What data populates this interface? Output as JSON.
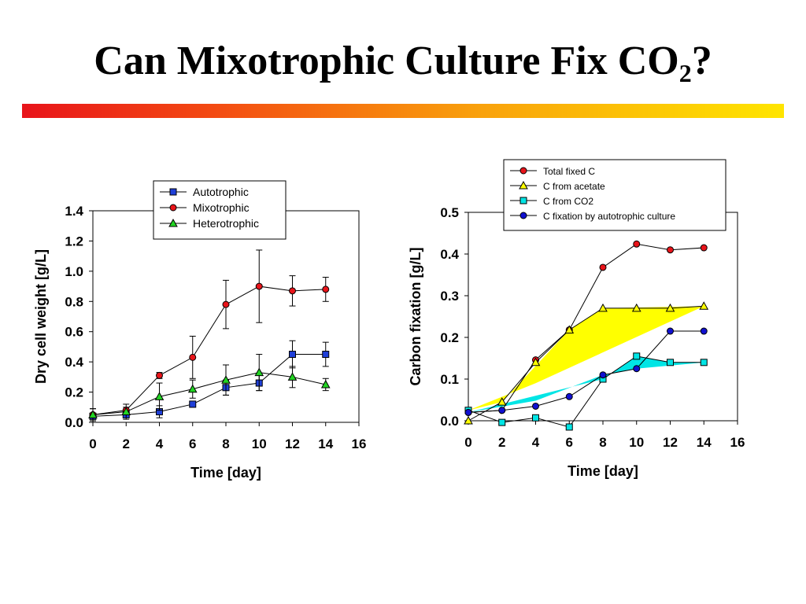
{
  "slide": {
    "title": "Can Mixotrophic Culture Fix CO",
    "title_subscript": "2",
    "title_suffix": "?"
  },
  "colors": {
    "title_bar_start": "#e8141a",
    "title_bar_end": "#ffe500",
    "autotrophic": "#1f3fd8",
    "mixotrophic": "#e8141a",
    "heterotrophic": "#22d422",
    "total_fixed": "#e8141a",
    "acetate": "#ffff00",
    "co2": "#00e5e5",
    "autotrophic_culture": "#1010d0"
  },
  "chart_data": [
    {
      "type": "line",
      "xlabel": "Time [day]",
      "ylabel": "Dry cell weight [g/L]",
      "xlim": [
        0,
        16
      ],
      "ylim": [
        0,
        1.4
      ],
      "xticks": [
        "0",
        "2",
        "4",
        "6",
        "8",
        "10",
        "12",
        "14",
        "16"
      ],
      "yticks": [
        "0.0",
        "0.2",
        "0.4",
        "0.6",
        "0.8",
        "1.0",
        "1.2",
        "1.4"
      ],
      "legend_position": "top-right",
      "grid": false,
      "series": [
        {
          "name": "Autotrophic",
          "marker": "square",
          "x": [
            0,
            2,
            4,
            6,
            8,
            10,
            12,
            14
          ],
          "y": [
            0.04,
            0.05,
            0.07,
            0.12,
            0.23,
            0.26,
            0.45,
            0.45
          ],
          "error": [
            0.02,
            0.02,
            0.04,
            0.02,
            0.05,
            0.05,
            0.09,
            0.08
          ]
        },
        {
          "name": "Mixotrophic",
          "marker": "circle",
          "x": [
            0,
            2,
            4,
            6,
            8,
            10,
            12,
            14
          ],
          "y": [
            0.05,
            0.08,
            0.31,
            0.43,
            0.78,
            0.9,
            0.87,
            0.88
          ],
          "error": [
            0.04,
            0.02,
            0.02,
            0.14,
            0.16,
            0.24,
            0.1,
            0.08
          ]
        },
        {
          "name": "Heterotrophic",
          "marker": "triangle",
          "x": [
            0,
            2,
            4,
            6,
            8,
            10,
            12,
            14
          ],
          "y": [
            0.05,
            0.07,
            0.17,
            0.22,
            0.28,
            0.33,
            0.3,
            0.25
          ],
          "error": [
            0.04,
            0.05,
            0.09,
            0.06,
            0.1,
            0.12,
            0.07,
            0.04
          ]
        }
      ]
    },
    {
      "type": "line",
      "xlabel": "Time [day]",
      "ylabel": "Carbon fixation [g/L]",
      "xlim": [
        0,
        16
      ],
      "ylim": [
        0,
        0.5
      ],
      "xticks": [
        "0",
        "2",
        "4",
        "6",
        "8",
        "10",
        "12",
        "14",
        "16"
      ],
      "yticks": [
        "0.0",
        "0.1",
        "0.2",
        "0.3",
        "0.4",
        "0.5"
      ],
      "legend_position": "top-right",
      "grid": false,
      "shaded_regions": [
        {
          "color": "yellow",
          "polygon_x": [
            0,
            2,
            6,
            8,
            14,
            4
          ],
          "polygon_y": [
            0.025,
            0.045,
            0.218,
            0.27,
            0.275,
            0.09
          ]
        },
        {
          "color": "cyan",
          "polygon_x": [
            0,
            8,
            10,
            12,
            14,
            10,
            8,
            4
          ],
          "polygon_y": [
            0.02,
            0.1,
            0.155,
            0.14,
            0.14,
            0.125,
            0.11,
            0.048
          ]
        }
      ],
      "series": [
        {
          "name": "Total fixed C",
          "marker": "circle",
          "x": [
            0,
            2,
            4,
            6,
            8,
            10,
            12,
            14
          ],
          "y": [
            0.02,
            0.025,
            0.146,
            0.218,
            0.368,
            0.424,
            0.41,
            0.415
          ]
        },
        {
          "name": "C from acetate",
          "marker": "triangle",
          "x": [
            0,
            2,
            4,
            6,
            8,
            10,
            12,
            14
          ],
          "y": [
            0.0,
            0.045,
            0.14,
            0.218,
            0.27,
            0.27,
            0.27,
            0.275
          ]
        },
        {
          "name": "C from CO2",
          "marker": "square",
          "x": [
            0,
            2,
            4,
            6,
            8,
            10,
            12,
            14
          ],
          "y": [
            0.025,
            -0.004,
            0.007,
            -0.015,
            0.1,
            0.155,
            0.14,
            0.14
          ]
        },
        {
          "name": "C fixation by autotrophic culture",
          "marker": "circle",
          "x": [
            0,
            2,
            4,
            6,
            8,
            10,
            12,
            14
          ],
          "y": [
            0.02,
            0.025,
            0.035,
            0.058,
            0.11,
            0.125,
            0.215,
            0.215
          ]
        }
      ]
    }
  ]
}
